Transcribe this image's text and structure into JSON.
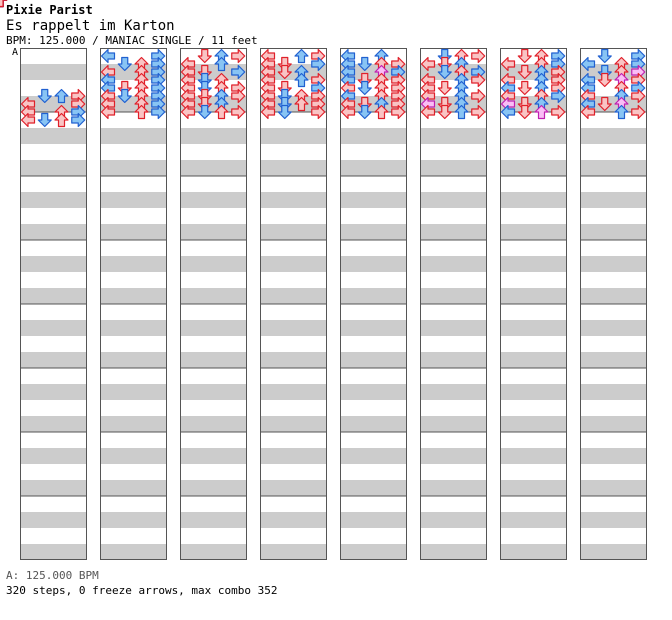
{
  "header": {
    "title": "Pixie Parist",
    "song": "Es rappelt im Karton",
    "info": "BPM: 125.000 / MANIAC SINGLE / 11 feet",
    "marker": "A"
  },
  "footer": {
    "bpm_line": "A: 125.000 BPM",
    "stats_line": "320 steps, 0 freeze arrows, max combo 352"
  },
  "colors": {
    "stripe": "#cccccc",
    "border": "#555555",
    "quarter_fill": "#f9c4c4",
    "quarter_stroke": "#e0202a",
    "eighth_fill": "#88c4f4",
    "eighth_stroke": "#2060d0",
    "sixteenth_fill": "#f9bdf5",
    "sixteenth_stroke": "#c020b0"
  },
  "icons": {
    "left": "left-arrow-icon",
    "down": "down-arrow-icon",
    "up": "up-arrow-icon",
    "right": "right-arrow-icon"
  },
  "chart_data": {
    "type": "step-chart",
    "column_count": 8,
    "measures_per_column": 8,
    "lanes": [
      "left",
      "down",
      "up",
      "right"
    ],
    "notes_by_column": [
      [
        [
          5,
          1,
          "e"
        ],
        [
          5,
          2,
          "e"
        ],
        [
          5,
          3,
          "q"
        ],
        [
          5,
          5,
          "q"
        ],
        [
          6,
          0,
          "q"
        ],
        [
          6,
          3,
          "q"
        ],
        [
          6,
          5,
          "e"
        ],
        [
          6,
          7,
          "q"
        ],
        [
          7,
          0,
          "q"
        ],
        [
          7,
          2,
          "q"
        ],
        [
          7,
          3,
          "e"
        ],
        [
          7,
          5,
          "s"
        ],
        [
          8,
          0,
          "q"
        ],
        [
          8,
          1,
          "e"
        ],
        [
          8,
          2,
          "q"
        ],
        [
          8,
          3,
          "e"
        ],
        [
          8,
          5,
          "q"
        ],
        [
          8,
          6,
          "q"
        ],
        [
          8,
          7,
          "q"
        ],
        [
          8,
          8,
          "q"
        ]
      ],
      [
        [
          0,
          0,
          "e"
        ],
        [
          0,
          3,
          "e"
        ],
        [
          1,
          1,
          "e"
        ],
        [
          1,
          2,
          "q"
        ],
        [
          1,
          3,
          "e"
        ],
        [
          1,
          5,
          "q"
        ],
        [
          2,
          0,
          "q"
        ],
        [
          2,
          2,
          "q"
        ],
        [
          2,
          3,
          "e"
        ],
        [
          2,
          5,
          "s"
        ],
        [
          3,
          0,
          "e"
        ],
        [
          3,
          2,
          "q"
        ],
        [
          3,
          3,
          "e"
        ],
        [
          3,
          5,
          "q"
        ],
        [
          4,
          0,
          "e"
        ],
        [
          4,
          1,
          "q"
        ],
        [
          4,
          2,
          "q"
        ],
        [
          4,
          3,
          "e"
        ],
        [
          4,
          5,
          "q"
        ],
        [
          5,
          0,
          "q"
        ],
        [
          5,
          1,
          "e"
        ],
        [
          5,
          2,
          "q"
        ],
        [
          5,
          3,
          "e"
        ],
        [
          5,
          5,
          "q"
        ],
        [
          6,
          0,
          "q"
        ],
        [
          6,
          2,
          "q"
        ],
        [
          6,
          3,
          "e"
        ],
        [
          6,
          5,
          "q"
        ],
        [
          7,
          0,
          "q"
        ],
        [
          7,
          2,
          "q"
        ],
        [
          7,
          3,
          "e"
        ],
        [
          7,
          5,
          "q"
        ],
        [
          7,
          7,
          "q"
        ]
      ],
      [
        [
          0,
          1,
          "q"
        ],
        [
          0,
          2,
          "e"
        ],
        [
          0,
          3,
          "q"
        ],
        [
          1,
          0,
          "q"
        ],
        [
          1,
          2,
          "e"
        ],
        [
          1,
          5,
          "q"
        ],
        [
          2,
          0,
          "q"
        ],
        [
          2,
          1,
          "q"
        ],
        [
          2,
          3,
          "e"
        ],
        [
          2,
          5,
          "q"
        ],
        [
          3,
          0,
          "q"
        ],
        [
          3,
          1,
          "e"
        ],
        [
          3,
          2,
          "q"
        ],
        [
          3,
          5,
          "q"
        ],
        [
          4,
          0,
          "q"
        ],
        [
          4,
          1,
          "e"
        ],
        [
          4,
          2,
          "q"
        ],
        [
          4,
          3,
          "q"
        ],
        [
          4,
          5,
          "e"
        ],
        [
          5,
          0,
          "q"
        ],
        [
          5,
          1,
          "q"
        ],
        [
          5,
          2,
          "e"
        ],
        [
          5,
          3,
          "q"
        ],
        [
          5,
          5,
          "e"
        ],
        [
          6,
          0,
          "q"
        ],
        [
          6,
          1,
          "q"
        ],
        [
          6,
          2,
          "e"
        ],
        [
          6,
          5,
          "q"
        ],
        [
          7,
          0,
          "q"
        ],
        [
          7,
          1,
          "e"
        ],
        [
          7,
          2,
          "q"
        ],
        [
          7,
          3,
          "q"
        ],
        [
          7,
          5,
          "q"
        ]
      ],
      [
        [
          0,
          0,
          "q"
        ],
        [
          0,
          2,
          "e"
        ],
        [
          0,
          3,
          "q"
        ],
        [
          1,
          0,
          "q"
        ],
        [
          1,
          1,
          "q"
        ],
        [
          1,
          3,
          "e"
        ],
        [
          1,
          5,
          "q"
        ],
        [
          2,
          0,
          "q"
        ],
        [
          2,
          1,
          "q"
        ],
        [
          2,
          2,
          "e"
        ],
        [
          2,
          5,
          "q"
        ],
        [
          3,
          0,
          "q"
        ],
        [
          3,
          2,
          "e"
        ],
        [
          3,
          3,
          "q"
        ],
        [
          3,
          5,
          "q"
        ],
        [
          4,
          0,
          "q"
        ],
        [
          4,
          1,
          "q"
        ],
        [
          4,
          3,
          "e"
        ],
        [
          4,
          5,
          "q"
        ],
        [
          5,
          0,
          "q"
        ],
        [
          5,
          1,
          "e"
        ],
        [
          5,
          2,
          "q"
        ],
        [
          5,
          3,
          "q"
        ],
        [
          5,
          5,
          "s"
        ],
        [
          6,
          0,
          "q"
        ],
        [
          6,
          1,
          "e"
        ],
        [
          6,
          2,
          "q"
        ],
        [
          6,
          3,
          "q"
        ],
        [
          6,
          5,
          "q"
        ],
        [
          7,
          0,
          "q"
        ],
        [
          7,
          1,
          "e"
        ],
        [
          7,
          3,
          "q"
        ],
        [
          7,
          5,
          "s"
        ]
      ],
      [
        [
          0,
          0,
          "e"
        ],
        [
          0,
          2,
          "e"
        ],
        [
          1,
          0,
          "e"
        ],
        [
          1,
          1,
          "e"
        ],
        [
          1,
          2,
          "q"
        ],
        [
          1,
          3,
          "q"
        ],
        [
          1,
          5,
          "q"
        ],
        [
          2,
          0,
          "e"
        ],
        [
          2,
          2,
          "s"
        ],
        [
          2,
          3,
          "e"
        ],
        [
          2,
          5,
          "q"
        ],
        [
          3,
          0,
          "e"
        ],
        [
          3,
          1,
          "q"
        ],
        [
          3,
          2,
          "q"
        ],
        [
          3,
          3,
          "q"
        ],
        [
          3,
          5,
          "s"
        ],
        [
          4,
          0,
          "q"
        ],
        [
          4,
          1,
          "e"
        ],
        [
          4,
          2,
          "q"
        ],
        [
          4,
          3,
          "q"
        ],
        [
          4,
          5,
          "e"
        ],
        [
          5,
          0,
          "e"
        ],
        [
          5,
          2,
          "q"
        ],
        [
          5,
          3,
          "q"
        ],
        [
          5,
          5,
          "q"
        ],
        [
          6,
          0,
          "q"
        ],
        [
          6,
          1,
          "q"
        ],
        [
          6,
          2,
          "e"
        ],
        [
          6,
          3,
          "q"
        ],
        [
          6,
          5,
          "e"
        ],
        [
          7,
          0,
          "q"
        ],
        [
          7,
          1,
          "e"
        ],
        [
          7,
          2,
          "q"
        ],
        [
          7,
          3,
          "q"
        ],
        [
          7,
          5,
          "q"
        ]
      ],
      [
        [
          0,
          1,
          "e"
        ],
        [
          0,
          2,
          "q"
        ],
        [
          0,
          3,
          "q"
        ],
        [
          1,
          0,
          "q"
        ],
        [
          1,
          1,
          "q"
        ],
        [
          1,
          2,
          "e"
        ],
        [
          1,
          5,
          "q"
        ],
        [
          2,
          1,
          "e"
        ],
        [
          2,
          2,
          "q"
        ],
        [
          2,
          3,
          "e"
        ],
        [
          2,
          5,
          "q"
        ],
        [
          3,
          0,
          "q"
        ],
        [
          3,
          2,
          "e"
        ],
        [
          3,
          3,
          "q"
        ],
        [
          3,
          5,
          "q"
        ],
        [
          4,
          0,
          "q"
        ],
        [
          4,
          1,
          "q"
        ],
        [
          4,
          2,
          "e"
        ],
        [
          4,
          5,
          "q"
        ],
        [
          5,
          0,
          "q"
        ],
        [
          5,
          2,
          "e"
        ],
        [
          5,
          3,
          "q"
        ],
        [
          5,
          5,
          "q"
        ],
        [
          6,
          0,
          "s"
        ],
        [
          6,
          1,
          "q"
        ],
        [
          6,
          2,
          "e"
        ],
        [
          6,
          5,
          "q"
        ],
        [
          7,
          0,
          "q"
        ],
        [
          7,
          1,
          "q"
        ],
        [
          7,
          2,
          "e"
        ],
        [
          7,
          3,
          "q"
        ],
        [
          7,
          5,
          "q"
        ]
      ],
      [
        [
          0,
          1,
          "q"
        ],
        [
          0,
          2,
          "q"
        ],
        [
          0,
          3,
          "e"
        ],
        [
          1,
          0,
          "q"
        ],
        [
          1,
          2,
          "q"
        ],
        [
          1,
          3,
          "e"
        ],
        [
          1,
          5,
          "q"
        ],
        [
          2,
          1,
          "q"
        ],
        [
          2,
          2,
          "e"
        ],
        [
          2,
          3,
          "q"
        ],
        [
          2,
          5,
          "e"
        ],
        [
          3,
          0,
          "q"
        ],
        [
          3,
          2,
          "e"
        ],
        [
          3,
          3,
          "q"
        ],
        [
          3,
          5,
          "q"
        ],
        [
          4,
          0,
          "e"
        ],
        [
          4,
          1,
          "q"
        ],
        [
          4,
          2,
          "e"
        ],
        [
          4,
          3,
          "q"
        ],
        [
          4,
          5,
          "q"
        ],
        [
          5,
          0,
          "q"
        ],
        [
          5,
          2,
          "q"
        ],
        [
          5,
          3,
          "e"
        ],
        [
          5,
          5,
          "q"
        ],
        [
          6,
          0,
          "s"
        ],
        [
          6,
          1,
          "q"
        ],
        [
          6,
          2,
          "e"
        ],
        [
          6,
          5,
          "q"
        ],
        [
          7,
          0,
          "e"
        ],
        [
          7,
          1,
          "q"
        ],
        [
          7,
          2,
          "s"
        ],
        [
          7,
          3,
          "q"
        ],
        [
          7,
          5,
          "s"
        ]
      ],
      [
        [
          0,
          1,
          "e"
        ],
        [
          0,
          3,
          "e"
        ],
        [
          1,
          0,
          "e"
        ],
        [
          1,
          2,
          "q"
        ],
        [
          1,
          3,
          "e"
        ],
        [
          1,
          5,
          "q"
        ],
        [
          2,
          1,
          "e"
        ],
        [
          2,
          2,
          "q"
        ],
        [
          2,
          3,
          "s"
        ],
        [
          2,
          5,
          "q"
        ],
        [
          3,
          0,
          "e"
        ],
        [
          3,
          1,
          "q"
        ],
        [
          3,
          2,
          "s"
        ],
        [
          3,
          3,
          "q"
        ],
        [
          3,
          5,
          "q"
        ],
        [
          4,
          0,
          "e"
        ],
        [
          4,
          2,
          "q"
        ],
        [
          4,
          3,
          "e"
        ],
        [
          4,
          5,
          "e"
        ],
        [
          5,
          0,
          "q"
        ],
        [
          5,
          2,
          "e"
        ],
        [
          5,
          3,
          "q"
        ],
        [
          5,
          5,
          "q"
        ],
        [
          6,
          0,
          "e"
        ],
        [
          6,
          1,
          "q"
        ],
        [
          6,
          2,
          "s"
        ],
        [
          6,
          5,
          "e"
        ],
        [
          7,
          0,
          "q"
        ],
        [
          7,
          2,
          "e"
        ],
        [
          7,
          3,
          "q"
        ],
        [
          7,
          5,
          "q"
        ]
      ]
    ]
  }
}
